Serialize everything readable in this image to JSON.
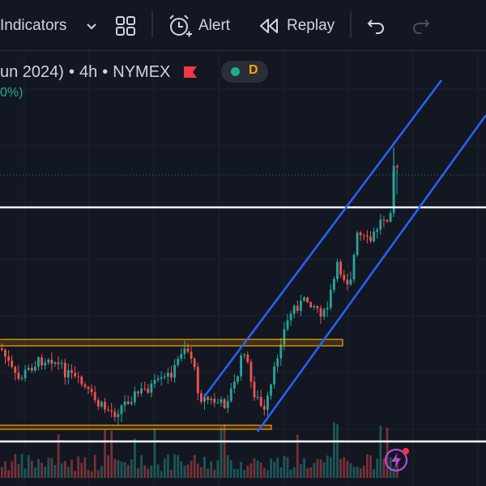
{
  "toolbar": {
    "indicators_label": "Indicators",
    "alert_label": "Alert",
    "replay_label": "Replay",
    "icons": [
      "chevron-down-icon",
      "layout-grid-icon",
      "alarm-clock-plus-icon",
      "rewind-icon",
      "undo-icon",
      "redo-icon"
    ]
  },
  "legend": {
    "symbol_text": "un 2024)",
    "interval": "4h",
    "exchange": "NYMEX",
    "separator": "•",
    "flag_color": "#f23645",
    "status_letter": "D",
    "status_dot_color": "#22ab94",
    "change_text": "0%)"
  },
  "colors": {
    "background": "#131722",
    "up_candle": "#26a69a",
    "down_candle": "#ef5350",
    "channel_line": "#2962ff",
    "zone_border": "#f7a600",
    "horizontal_level": "#ffffff"
  },
  "floating_button": {
    "icon": "lightning-icon",
    "badge_color": "#f23645"
  }
}
